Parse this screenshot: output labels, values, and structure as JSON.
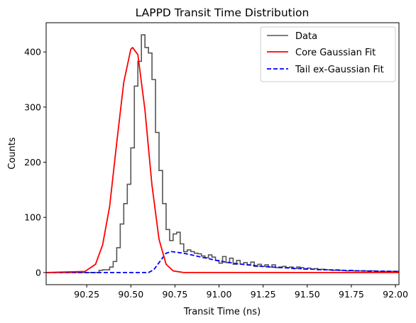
{
  "chart_data": {
    "type": "line",
    "title": "LAPPD Transit Time Distribution",
    "xlabel": "Transit Time (ns)",
    "ylabel": "Counts",
    "xlim": [
      90.02,
      92.02
    ],
    "ylim": [
      -22,
      453
    ],
    "x_ticks": [
      "90.25",
      "90.50",
      "90.75",
      "91.00",
      "91.25",
      "91.50",
      "91.75",
      "92.00"
    ],
    "y_ticks": [
      "0",
      "100",
      "200",
      "300",
      "400"
    ],
    "grid": false,
    "legend_position": "top-right",
    "series": [
      {
        "name": "Data",
        "style": "step",
        "color": "#555555",
        "bin_width": 0.02,
        "bin_edges_start": 90.02,
        "counts": [
          0,
          0,
          0,
          0,
          0,
          0,
          0,
          0,
          0,
          0,
          0,
          0,
          0,
          0,
          0,
          4,
          5,
          5,
          10,
          20,
          45,
          88,
          125,
          160,
          226,
          338,
          383,
          431,
          408,
          398,
          350,
          254,
          185,
          125,
          78,
          58,
          70,
          73,
          52,
          38,
          41,
          38,
          35,
          34,
          30,
          27,
          32,
          28,
          22,
          17,
          29,
          18,
          26,
          15,
          22,
          15,
          18,
          14,
          19,
          11,
          15,
          11,
          14,
          10,
          14,
          9,
          10,
          11,
          9,
          10,
          7,
          10,
          9,
          6,
          8,
          6,
          7,
          5,
          6,
          5,
          5,
          4,
          5,
          4,
          4,
          3,
          4,
          3,
          3,
          3,
          3,
          2,
          3,
          2,
          2,
          2,
          2,
          2,
          2,
          2
        ]
      },
      {
        "name": "Core Gaussian Fit",
        "style": "line",
        "color": "#ff0000",
        "x": [
          90.02,
          90.24,
          90.3,
          90.34,
          90.38,
          90.42,
          90.46,
          90.5,
          90.51,
          90.54,
          90.58,
          90.62,
          90.66,
          90.7,
          90.74,
          90.8,
          92.02
        ],
        "y": [
          0,
          2,
          15,
          50,
          120,
          235,
          345,
          405,
          408,
          395,
          295,
          158,
          60,
          15,
          3,
          0,
          0
        ]
      },
      {
        "name": "Tail ex-Gaussian Fit",
        "style": "dashed",
        "color": "#0000ff",
        "x": [
          90.02,
          90.6,
          90.63,
          90.66,
          90.7,
          90.73,
          90.8,
          90.9,
          91.0,
          91.1,
          91.25,
          91.4,
          91.6,
          91.8,
          92.02
        ],
        "y": [
          0,
          0,
          5,
          18,
          35,
          38,
          35,
          28,
          21,
          16,
          11,
          8,
          5,
          3,
          2
        ]
      }
    ]
  }
}
